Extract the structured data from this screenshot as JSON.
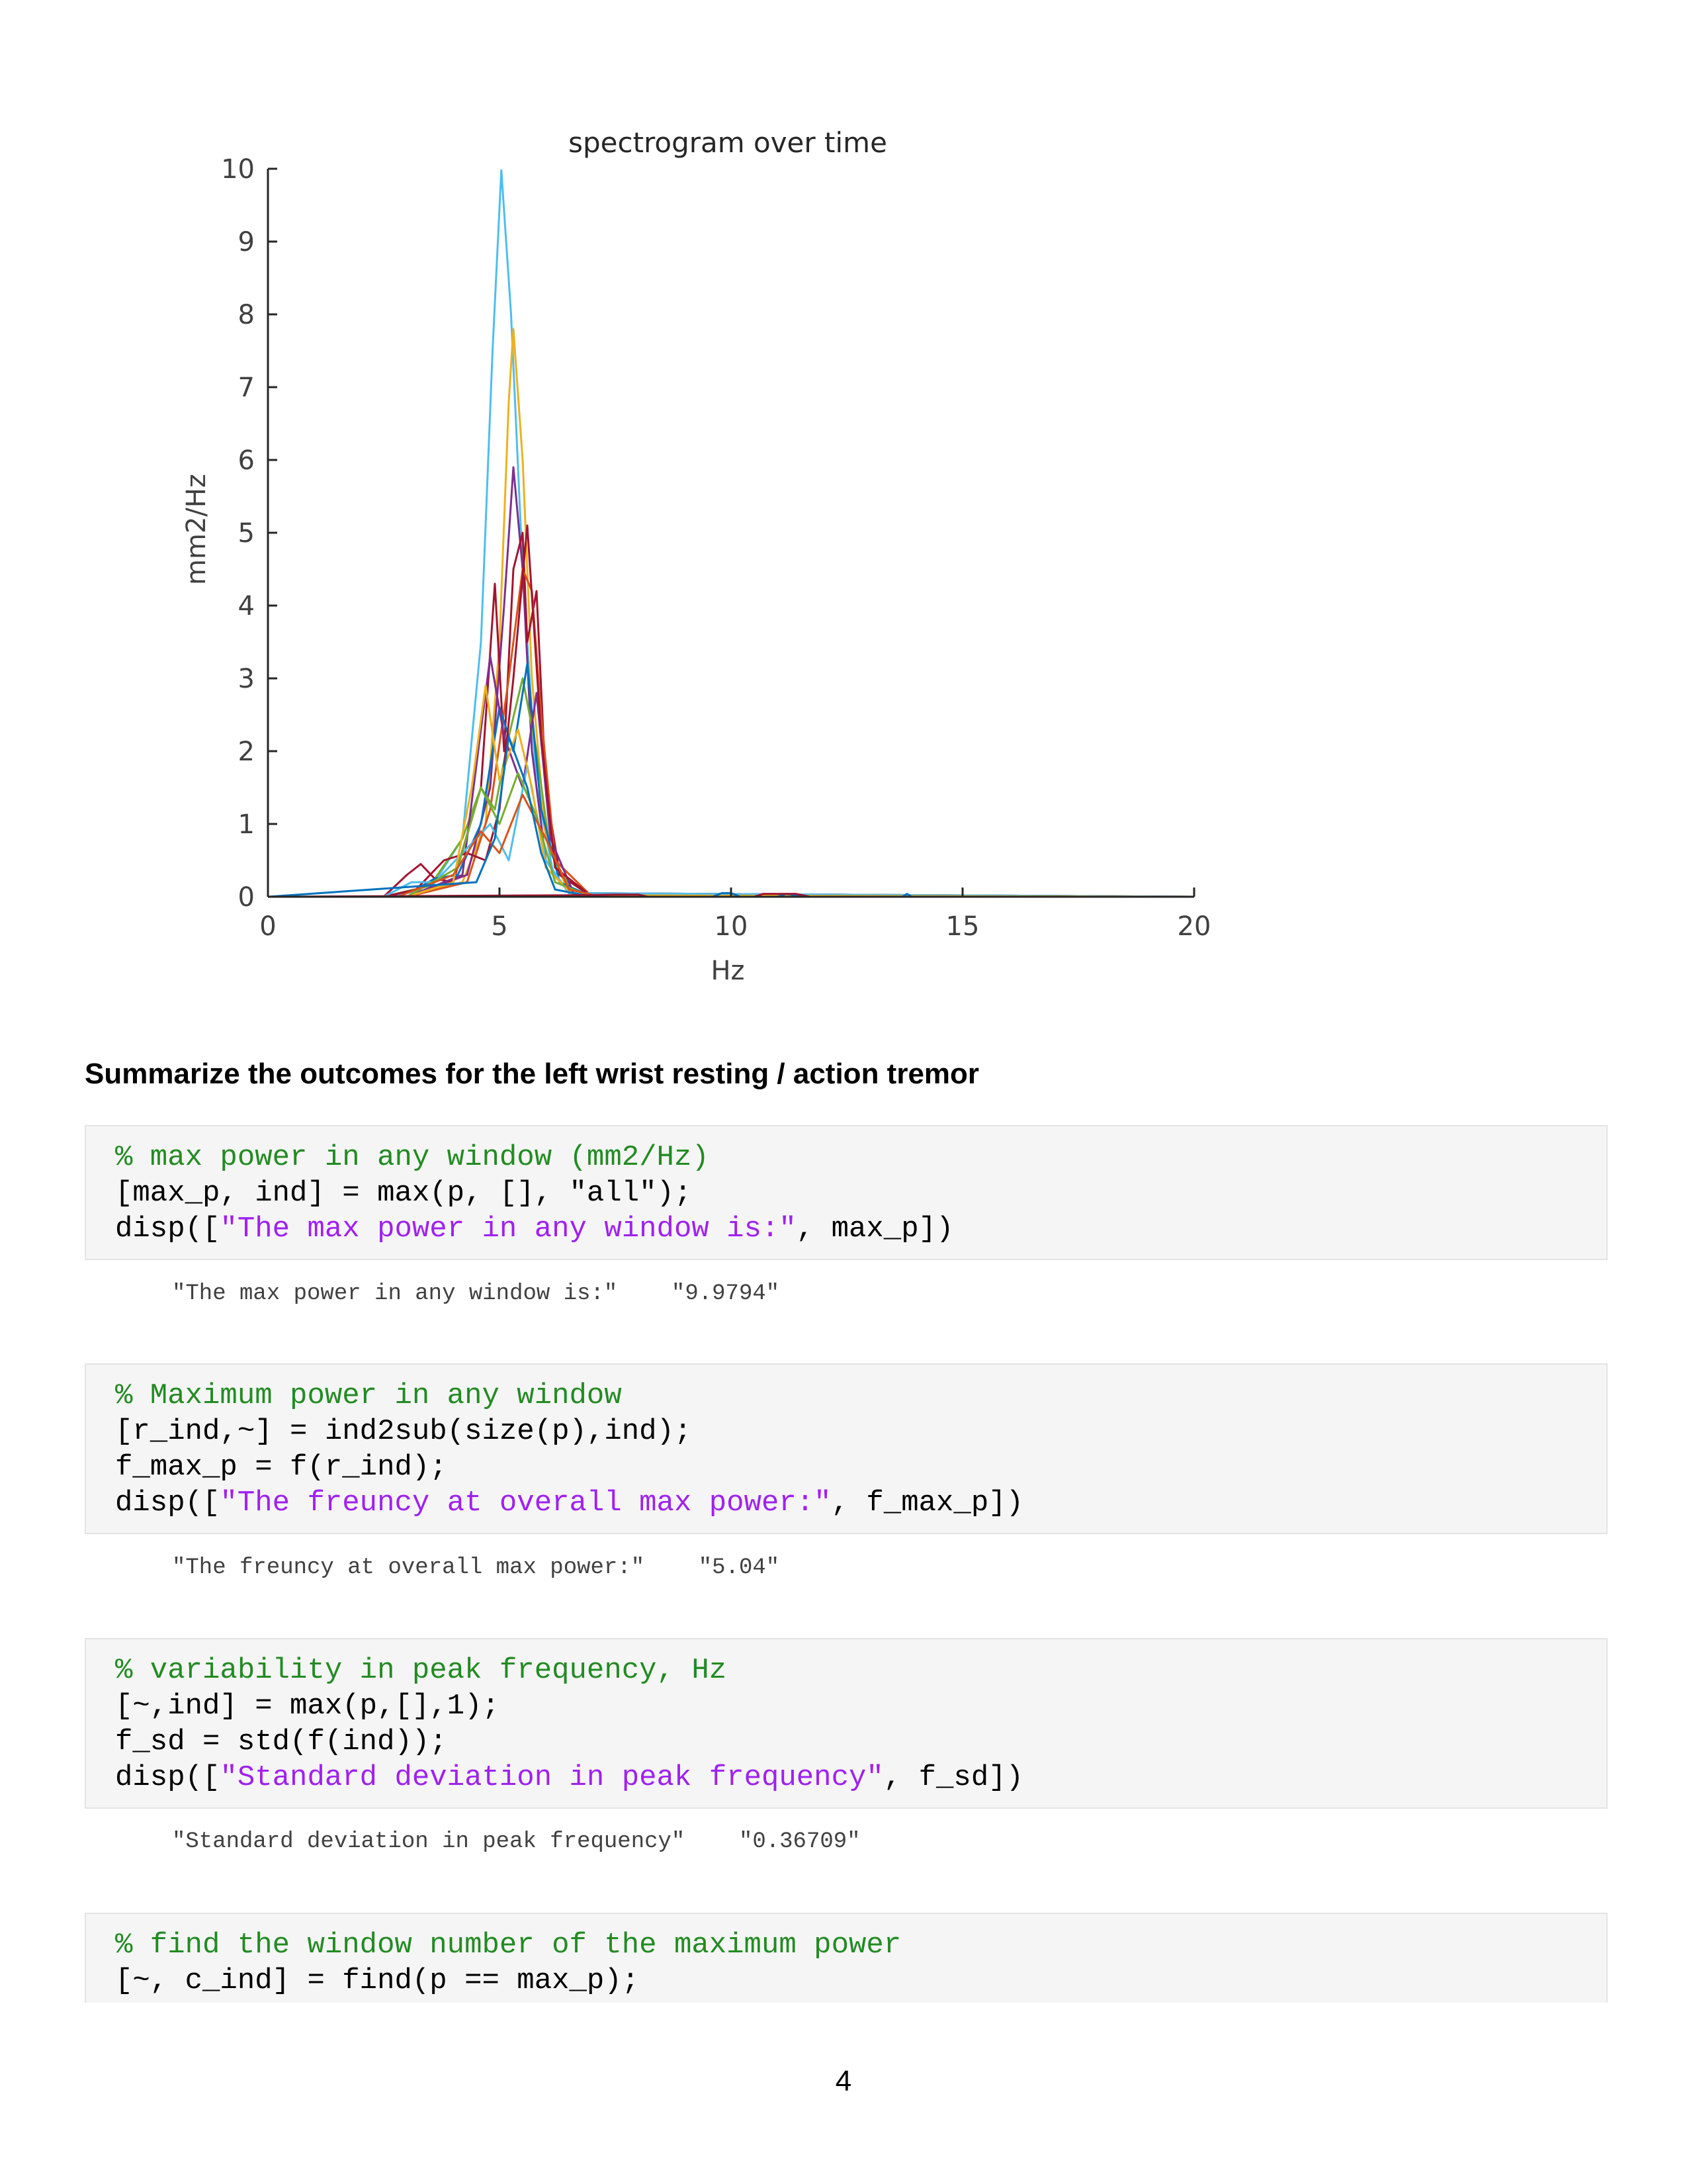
{
  "chart_data": {
    "type": "line",
    "title": "spectrogram over time",
    "xlabel": "Hz",
    "ylabel": "mm2/Hz",
    "xlim": [
      0,
      20
    ],
    "ylim": [
      0,
      10
    ],
    "xticks": [
      "0",
      "5",
      "10",
      "15",
      "20"
    ],
    "yticks": [
      "0",
      "1",
      "2",
      "3",
      "4",
      "5",
      "6",
      "7",
      "8",
      "9",
      "10"
    ],
    "grid": false,
    "legend": "none",
    "series": [
      {
        "color": "#4DBEEE",
        "x": [
          0,
          2.5,
          3.5,
          4.2,
          4.6,
          4.85,
          5.04,
          5.25,
          5.5,
          5.8,
          6.2,
          7,
          20
        ],
        "y": [
          0,
          0,
          0.1,
          0.8,
          3.5,
          7.5,
          9.98,
          8.0,
          4.5,
          1.5,
          0.2,
          0,
          0
        ]
      },
      {
        "color": "#EDB120",
        "x": [
          0,
          3,
          4.2,
          4.7,
          5.0,
          5.2,
          5.3,
          5.5,
          5.7,
          6.0,
          6.5,
          20
        ],
        "y": [
          0,
          0,
          0.2,
          1.0,
          3.5,
          6.8,
          7.8,
          6.0,
          3.0,
          0.8,
          0.05,
          0
        ]
      },
      {
        "color": "#7E2F8E",
        "x": [
          0,
          3,
          4.3,
          4.8,
          5.1,
          5.3,
          5.5,
          5.7,
          6.0,
          6.5,
          20
        ],
        "y": [
          0,
          0,
          0.3,
          1.5,
          4.0,
          5.9,
          4.5,
          2.0,
          0.5,
          0.05,
          0
        ]
      },
      {
        "color": "#A2142F",
        "x": [
          0,
          2.5,
          3.0,
          3.3,
          3.6,
          4.0,
          4.6,
          4.9,
          5.1,
          5.3,
          5.5,
          5.6,
          5.8,
          6.0,
          6.3,
          7,
          20
        ],
        "y": [
          0,
          0,
          0.3,
          0.45,
          0.25,
          0.2,
          1.5,
          4.3,
          2.0,
          4.5,
          5.0,
          3.5,
          4.2,
          1.5,
          0.3,
          0,
          0
        ]
      },
      {
        "color": "#D95319",
        "x": [
          0,
          3,
          4.3,
          4.8,
          5.2,
          5.5,
          5.7,
          5.9,
          6.2,
          7,
          20
        ],
        "y": [
          0,
          0,
          0.2,
          1.2,
          3.0,
          4.5,
          4.2,
          2.5,
          0.5,
          0,
          0
        ]
      },
      {
        "color": "#77AC30",
        "x": [
          0,
          2.5,
          3.5,
          4.2,
          4.6,
          4.9,
          5.2,
          5.5,
          5.8,
          6.1,
          6.6,
          20
        ],
        "y": [
          0,
          0,
          0.15,
          0.8,
          1.5,
          1.2,
          2.2,
          3.0,
          2.0,
          0.6,
          0.05,
          0
        ]
      },
      {
        "color": "#0072BD",
        "x": [
          0,
          2.5,
          3.2,
          3.6,
          4.1,
          4.6,
          5.0,
          5.3,
          5.6,
          5.9,
          6.3,
          7,
          20
        ],
        "y": [
          0,
          0,
          0.1,
          0.25,
          0.3,
          1.0,
          2.6,
          2.0,
          3.2,
          1.2,
          0.2,
          0,
          0
        ]
      },
      {
        "color": "#7E2F8E",
        "x": [
          0,
          3,
          4.2,
          4.5,
          4.8,
          5.1,
          5.5,
          5.8,
          6.1,
          6.6,
          20
        ],
        "y": [
          0,
          0,
          0.3,
          1.8,
          3.3,
          2.2,
          1.5,
          2.8,
          0.8,
          0.05,
          0
        ]
      },
      {
        "color": "#A2142F",
        "x": [
          0,
          2.5,
          3.2,
          3.8,
          4.3,
          4.7,
          5.0,
          5.3,
          5.6,
          5.9,
          6.2,
          7,
          20
        ],
        "y": [
          0,
          0,
          0.1,
          0.5,
          0.6,
          0.5,
          1.2,
          3.0,
          5.1,
          2.2,
          0.4,
          0,
          0
        ]
      },
      {
        "color": "#4DBEEE",
        "x": [
          0,
          2.5,
          3.1,
          3.6,
          4.2,
          4.8,
          5.2,
          5.6,
          6.0,
          6.5,
          20
        ],
        "y": [
          0,
          0,
          0.2,
          0.2,
          0.6,
          1.0,
          0.5,
          1.8,
          0.5,
          0.05,
          0
        ]
      },
      {
        "color": "#EDB120",
        "x": [
          0,
          3,
          4.0,
          4.4,
          4.7,
          5.0,
          5.4,
          5.7,
          6.0,
          6.6,
          20
        ],
        "y": [
          0,
          0,
          0.2,
          1.5,
          2.9,
          1.6,
          2.3,
          1.5,
          0.4,
          0.02,
          0
        ]
      },
      {
        "color": "#77AC30",
        "x": [
          0,
          3,
          4.1,
          4.6,
          5.0,
          5.4,
          5.8,
          6.2,
          7,
          20
        ],
        "y": [
          0,
          0,
          0.4,
          1.5,
          1.0,
          1.7,
          1.1,
          0.2,
          0,
          0
        ]
      },
      {
        "color": "#D95319",
        "x": [
          0,
          2.8,
          3.4,
          4.0,
          4.6,
          5.0,
          5.5,
          6.0,
          6.5,
          7.2,
          20
        ],
        "y": [
          0,
          0,
          0.15,
          0.3,
          0.9,
          0.6,
          1.4,
          0.8,
          0.1,
          0,
          0
        ]
      },
      {
        "color": "#0072BD",
        "x": [
          0,
          4.5,
          4.9,
          5.2,
          5.6,
          5.9,
          6.2,
          7,
          9.6,
          9.8,
          10.0,
          10.2,
          11.0,
          11.2,
          11.6,
          13.7,
          13.8,
          13.9,
          20
        ],
        "y": [
          0,
          0.2,
          0.8,
          2.2,
          1.5,
          0.6,
          0.1,
          0,
          0,
          0.05,
          0.05,
          0,
          0,
          0.04,
          0,
          0,
          0.04,
          0,
          0
        ]
      },
      {
        "color": "#A2142F",
        "x": [
          0,
          6.5,
          7.5,
          8.0,
          8.2,
          8.6,
          10.5,
          10.7,
          11.4,
          11.7,
          20
        ],
        "y": [
          0,
          0.02,
          0.03,
          0.03,
          0,
          0,
          0,
          0.04,
          0.04,
          0,
          0
        ]
      }
    ]
  },
  "document": {
    "heading": "Summarize the outcomes for the left wrist resting / action tremor",
    "page_number": "4",
    "cells": [
      {
        "comment": "% max power in any window (mm2/Hz)",
        "line2": "[max_p, ind] = max(p, [], \"all\");",
        "line3_a": "disp([",
        "line3_str": "\"The max power in any window is:\"",
        "line3_b": ", max_p])",
        "output": "\"The max power in any window is:\"    \"9.9794\""
      },
      {
        "comment": "% Maximum power in any window",
        "line2": "[r_ind,~] = ind2sub(size(p),ind);",
        "line3": "f_max_p = f(r_ind);",
        "line4_a": "disp([",
        "line4_str": "\"The freuncy at overall max power:\"",
        "line4_b": ", f_max_p])",
        "output": "\"The freuncy at overall max power:\"    \"5.04\""
      },
      {
        "comment": "% variability in peak frequency, Hz",
        "line2": "[~,ind] = max(p,[],1);",
        "line3": "f_sd = std(f(ind));",
        "line4_a": "disp([",
        "line4_str": "\"Standard deviation in peak frequency\"",
        "line4_b": ", f_sd])",
        "output": "\"Standard deviation in peak frequency\"    \"0.36709\""
      },
      {
        "comment": "% find the window number of the maximum power",
        "line2": "[~, c_ind] = find(p == max_p);"
      }
    ]
  }
}
